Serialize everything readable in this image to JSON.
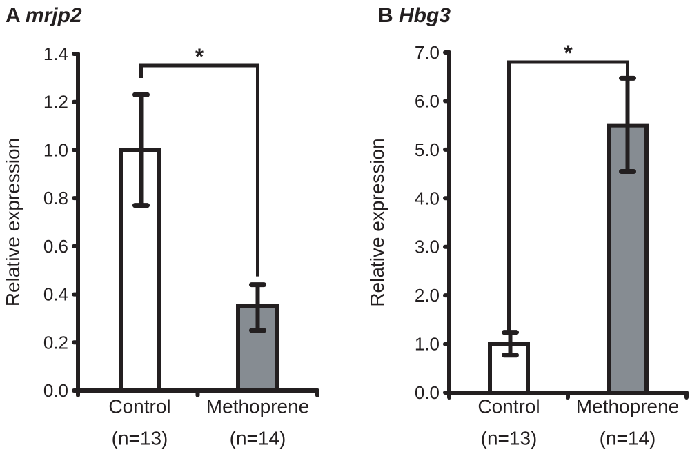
{
  "chart_data": [
    {
      "type": "bar",
      "panel_letter": "A",
      "title": "mrjp2",
      "ylabel": "Relative expression",
      "ylim": [
        0,
        1.4
      ],
      "yticks": [
        "0.0",
        "0.2",
        "0.4",
        "0.6",
        "0.8",
        "1.0",
        "1.2",
        "1.4"
      ],
      "categories": [
        "Control",
        "Methoprene"
      ],
      "category_n": [
        "(n=13)",
        "(n=14)"
      ],
      "values": [
        1.0,
        0.35
      ],
      "error_upper": [
        1.23,
        0.44
      ],
      "error_lower": [
        0.77,
        0.25
      ],
      "bar_colors": [
        "#ffffff",
        "#868c92"
      ],
      "significance": {
        "label": "*",
        "between": [
          "Control",
          "Methoprene"
        ]
      },
      "grid": false
    },
    {
      "type": "bar",
      "panel_letter": "B",
      "title": "Hbg3",
      "ylabel": "Relative expression",
      "ylim": [
        0,
        7.0
      ],
      "yticks": [
        "0.0",
        "1.0",
        "2.0",
        "3.0",
        "4.0",
        "5.0",
        "6.0",
        "7.0"
      ],
      "categories": [
        "Control",
        "Methoprene"
      ],
      "category_n": [
        "(n=13)",
        "(n=14)"
      ],
      "values": [
        1.0,
        5.5
      ],
      "error_upper": [
        1.24,
        6.47
      ],
      "error_lower": [
        0.77,
        4.55
      ],
      "bar_colors": [
        "#ffffff",
        "#868c92"
      ],
      "significance": {
        "label": "*",
        "between": [
          "Control",
          "Methoprene"
        ]
      },
      "grid": false
    }
  ],
  "colors": {
    "ink": "#231f20"
  }
}
